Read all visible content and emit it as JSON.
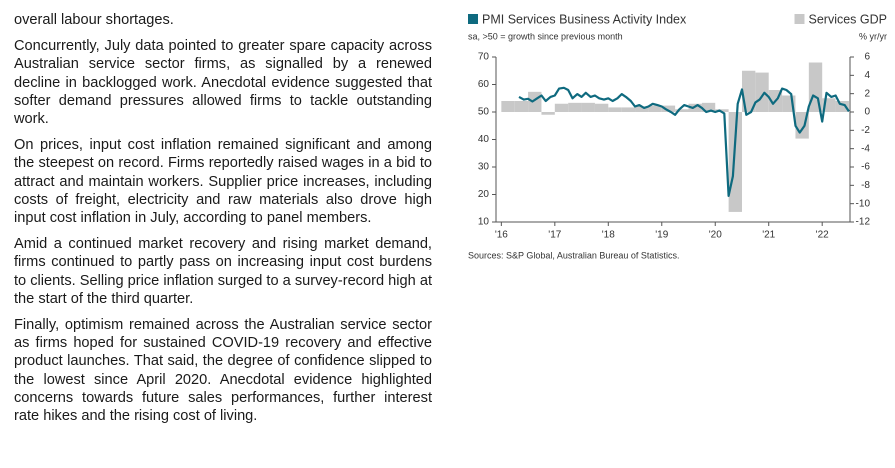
{
  "paragraphs": [
    "overall labour shortages.",
    "Concurrently, July data pointed to greater spare capacity across Australian service sector firms, as signalled by a renewed decline in backlogged work. Anecdotal evidence suggested that softer demand pressures allowed firms to tackle outstanding work.",
    "On prices, input cost inflation remained significant and among the steepest on record. Firms reportedly raised wages in a bid to attract and maintain workers. Supplier price increases, including costs of freight, electricity and raw materials also drove high input cost inflation in July, according to panel members.",
    "Amid a continued market recovery and rising market demand, firms continued to partly pass on increasing input cost burdens to clients. Selling price inflation surged to a survey-record high at the start of the third quarter.",
    "Finally, optimism remained across the Australian service sector as firms hoped for sustained COVID-19 recovery and effective product launches. That said, the degree of confidence slipped to the lowest since April 2020. Anecdotal evidence highlighted concerns towards future sales performances, further interest rate hikes and the rising cost of living."
  ],
  "chart_data": {
    "type": "line",
    "subtitle": "sa, >50 = growth since previous month",
    "y2_label": "% yr/yr",
    "source": "Sources: S&P Global, Australian Bureau of Statistics.",
    "xlim": [
      2015.9,
      2022.52
    ],
    "xticks": [
      {
        "value": 2016,
        "label": "'16"
      },
      {
        "value": 2017,
        "label": "'17"
      },
      {
        "value": 2018,
        "label": "'18"
      },
      {
        "value": 2019,
        "label": "'19"
      },
      {
        "value": 2020,
        "label": "'20"
      },
      {
        "value": 2021,
        "label": "'21"
      },
      {
        "value": 2022,
        "label": "'22"
      }
    ],
    "ylim": [
      10,
      70
    ],
    "yticks": [
      10,
      20,
      30,
      40,
      50,
      60,
      70
    ],
    "y2lim": [
      -12,
      6
    ],
    "y2ticks": [
      6,
      4,
      2,
      0,
      -2,
      -4,
      -6,
      -8,
      -10,
      -12
    ],
    "legend": "top",
    "series": [
      {
        "name": "PMI Services Business Activity Index",
        "type": "line",
        "color": "#0e6a7f",
        "x": [
          2016.33,
          2016.42,
          2016.5,
          2016.58,
          2016.67,
          2016.75,
          2016.83,
          2016.92,
          2017.0,
          2017.08,
          2017.17,
          2017.25,
          2017.33,
          2017.42,
          2017.5,
          2017.58,
          2017.67,
          2017.75,
          2017.83,
          2017.92,
          2018.0,
          2018.08,
          2018.17,
          2018.25,
          2018.33,
          2018.42,
          2018.5,
          2018.58,
          2018.67,
          2018.75,
          2018.83,
          2018.92,
          2019.0,
          2019.08,
          2019.17,
          2019.25,
          2019.33,
          2019.42,
          2019.5,
          2019.58,
          2019.67,
          2019.75,
          2019.83,
          2019.92,
          2020.0,
          2020.08,
          2020.17,
          2020.25,
          2020.33,
          2020.42,
          2020.5,
          2020.58,
          2020.67,
          2020.75,
          2020.83,
          2020.92,
          2021.0,
          2021.08,
          2021.17,
          2021.25,
          2021.33,
          2021.42,
          2021.5,
          2021.58,
          2021.67,
          2021.75,
          2021.83,
          2021.92,
          2022.0,
          2022.08,
          2022.17,
          2022.25,
          2022.33,
          2022.42,
          2022.5
        ],
        "values": [
          55.5,
          54.5,
          54.8,
          53.8,
          55,
          56,
          54,
          55.5,
          56,
          58.5,
          58.8,
          58,
          55,
          56.5,
          55.5,
          57,
          55.5,
          56,
          55,
          54.5,
          55,
          54,
          55,
          56.5,
          55.5,
          54,
          52,
          52.5,
          51.5,
          52,
          53,
          52.5,
          52,
          51,
          50,
          49,
          51,
          52.5,
          52,
          51.5,
          52.5,
          51.5,
          50,
          50.5,
          50,
          50.5,
          49.5,
          19.5,
          26.7,
          53,
          58.2,
          49,
          50,
          53.5,
          54.5,
          57,
          55.5,
          53,
          55,
          58.5,
          58,
          56.5,
          45,
          42.5,
          45,
          52,
          56,
          55,
          46.5,
          57,
          55.5,
          56,
          53,
          52.5,
          50.2
        ]
      },
      {
        "name": "Services GDP",
        "type": "bar",
        "axis": "y2",
        "color": "#c8c8c8",
        "x": [
          2016.0,
          2016.25,
          2016.5,
          2016.75,
          2017.0,
          2017.25,
          2017.5,
          2017.75,
          2018.0,
          2018.25,
          2018.5,
          2018.75,
          2019.0,
          2019.25,
          2019.5,
          2019.75,
          2020.0,
          2020.25,
          2020.5,
          2020.75,
          2021.0,
          2021.25,
          2021.5,
          2021.75,
          2022.0,
          2022.25
        ],
        "values": [
          1.2,
          1.2,
          2.2,
          -0.3,
          0.9,
          1.0,
          1.0,
          0.9,
          0.5,
          0.5,
          0.6,
          0.7,
          0.7,
          0.3,
          0.9,
          1.0,
          0.3,
          -10.9,
          4.5,
          4.3,
          2.4,
          1.8,
          -2.9,
          5.4,
          1.5,
          1.2
        ]
      }
    ]
  }
}
